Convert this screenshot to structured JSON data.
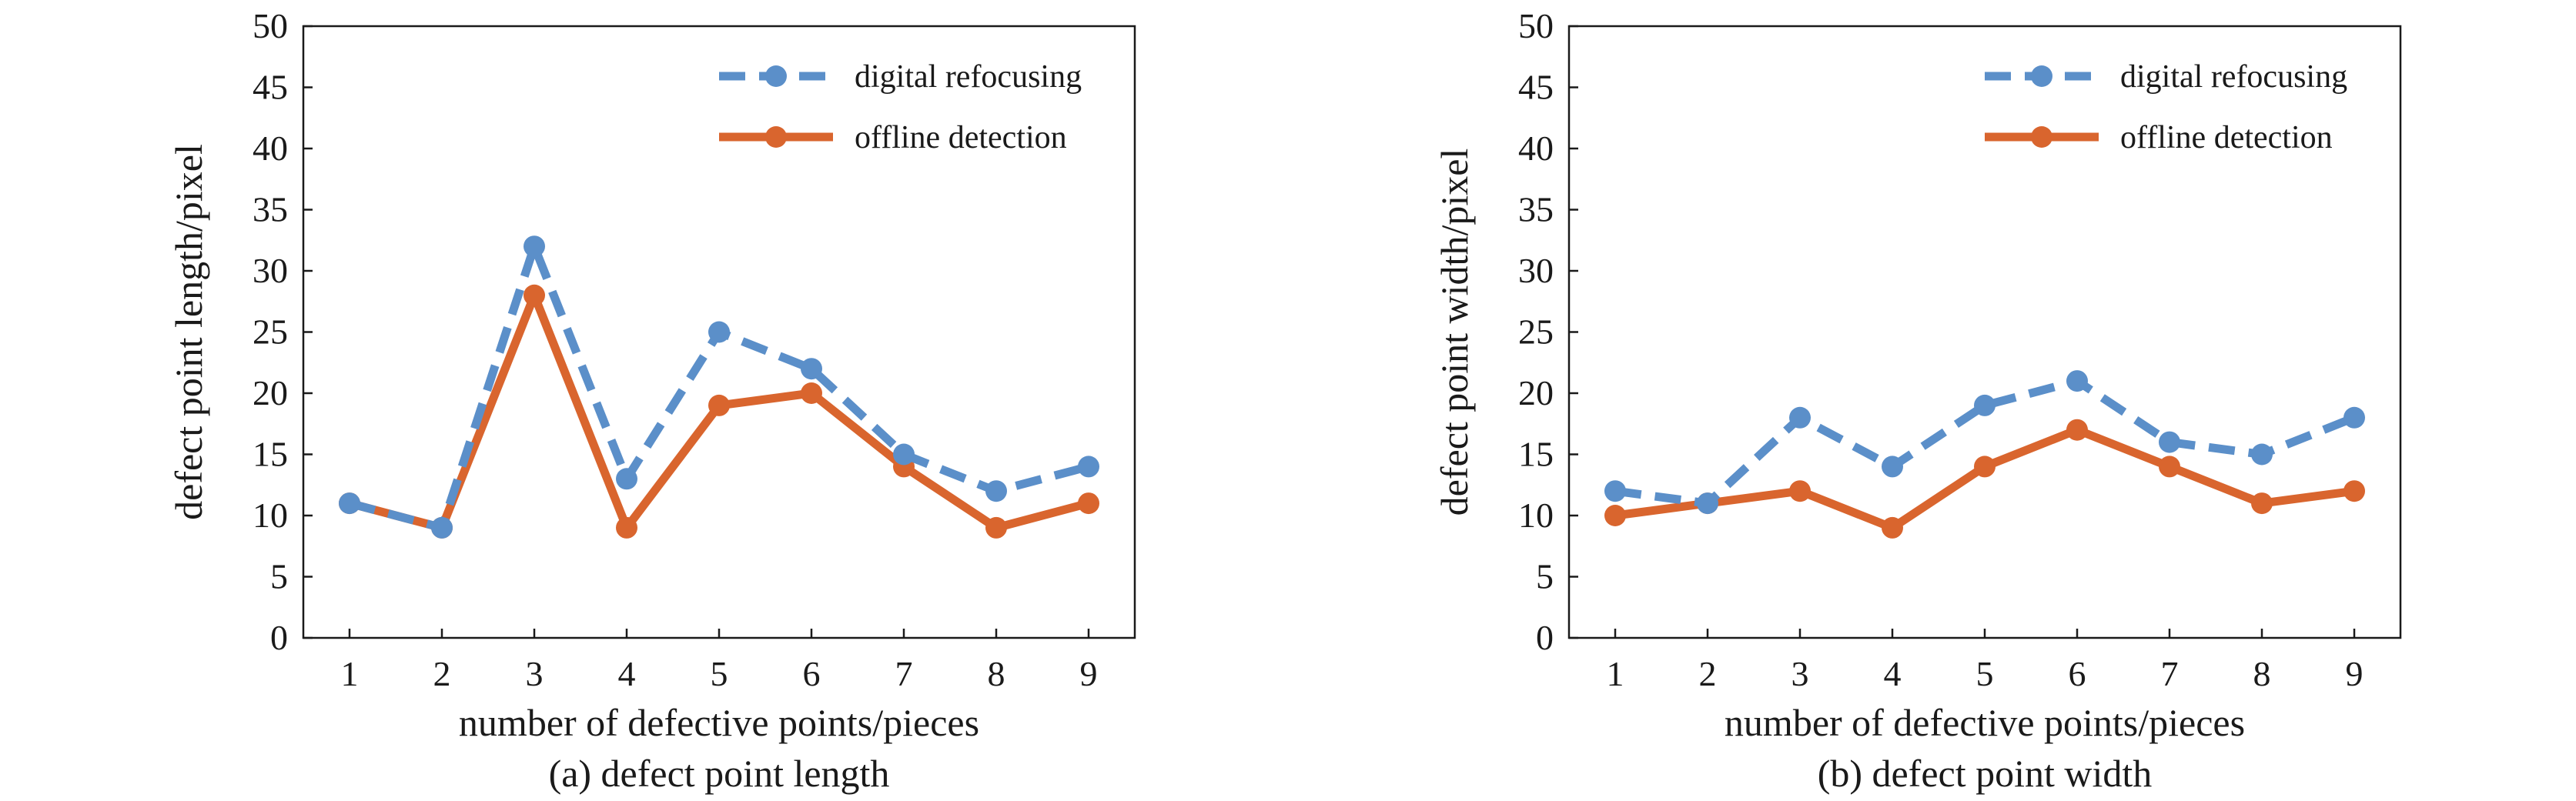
{
  "chart_data": [
    {
      "type": "line",
      "panel": "a",
      "caption": "(a) defect point length",
      "xlabel": "number of defective points/pieces",
      "ylabel": "defect point length/pixel",
      "categories": [
        "1",
        "2",
        "3",
        "4",
        "5",
        "6",
        "7",
        "8",
        "9"
      ],
      "x": [
        1,
        2,
        3,
        4,
        5,
        6,
        7,
        8,
        9
      ],
      "xlim": [
        0.5,
        9.5
      ],
      "ylim": [
        0,
        50
      ],
      "yticks": [
        0,
        5,
        10,
        15,
        20,
        25,
        30,
        35,
        40,
        45,
        50
      ],
      "grid": false,
      "legend": "top-right",
      "series": [
        {
          "name": "digital refocusing",
          "values": [
            11,
            9,
            32,
            13,
            25,
            22,
            15,
            12,
            14
          ],
          "color": "#5b8fc9",
          "dash": true
        },
        {
          "name": "offline detection",
          "values": [
            11,
            9,
            28,
            9,
            19,
            20,
            14,
            9,
            11
          ],
          "color": "#d9652e",
          "dash": false
        }
      ]
    },
    {
      "type": "line",
      "panel": "b",
      "caption": "(b) defect point width",
      "xlabel": "number of defective points/pieces",
      "ylabel": "defect point width/pixel",
      "categories": [
        "1",
        "2",
        "3",
        "4",
        "5",
        "6",
        "7",
        "8",
        "9"
      ],
      "x": [
        1,
        2,
        3,
        4,
        5,
        6,
        7,
        8,
        9
      ],
      "xlim": [
        0.5,
        9.5
      ],
      "ylim": [
        0,
        50
      ],
      "yticks": [
        0,
        5,
        10,
        15,
        20,
        25,
        30,
        35,
        40,
        45,
        50
      ],
      "grid": false,
      "legend": "top-right",
      "series": [
        {
          "name": "digital refocusing",
          "values": [
            12,
            11,
            18,
            14,
            19,
            21,
            16,
            15,
            18
          ],
          "color": "#5b8fc9",
          "dash": true
        },
        {
          "name": "offline detection",
          "values": [
            10,
            11,
            12,
            9,
            14,
            17,
            14,
            11,
            12
          ],
          "color": "#d9652e",
          "dash": false
        }
      ]
    }
  ]
}
